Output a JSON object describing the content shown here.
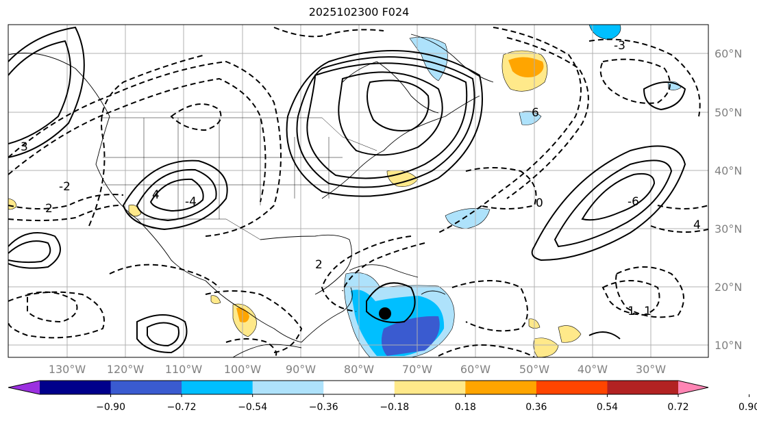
{
  "title": "2025102300 F024",
  "lat_labels": [
    "60°N",
    "50°N",
    "40°N",
    "30°N",
    "20°N",
    "10°N"
  ],
  "lon_labels": [
    "130°W",
    "120°W",
    "110°W",
    "100°W",
    "90°W",
    "80°W",
    "70°W",
    "60°W",
    "50°W",
    "40°W",
    "30°W"
  ],
  "colorbar": {
    "ticks": [
      "−0.90",
      "−0.72",
      "−0.54",
      "−0.36",
      "−0.18",
      "0.18",
      "0.36",
      "0.54",
      "0.72",
      "0.90"
    ],
    "colors": [
      "#9b30e0",
      "#00008b",
      "#3a5bd0",
      "#00bfff",
      "#aee2fb",
      "#ffffff",
      "#ffe98a",
      "#ffa500",
      "#ff4500",
      "#b22222",
      "#ff85b4"
    ]
  },
  "contour_labels": [
    "3",
    "4",
    "2",
    "-2",
    "-4",
    "6",
    "0",
    "-6",
    "-3",
    "2",
    "-1",
    "1",
    "4"
  ],
  "marker": "storm-center"
}
